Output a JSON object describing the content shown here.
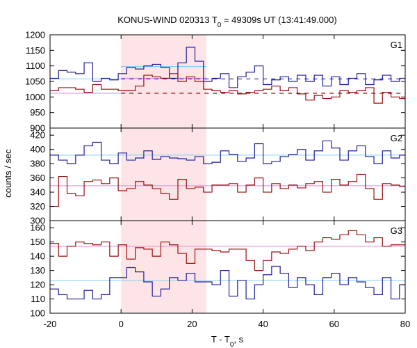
{
  "chart_data": {
    "type": "line",
    "title_main": "KONUS-WIND 020313 T",
    "title_sub": "0",
    "title_rest": " = 49309s UT (13:41:49.000)",
    "xlabel_main": "T - T",
    "xlabel_sub": "0",
    "xlabel_rest": ", s",
    "ylabel": "counts / sec",
    "xlim": [
      -20,
      80
    ],
    "x_ticks": [
      "-20",
      "0",
      "20",
      "40",
      "60",
      "80"
    ],
    "x_tick_values": [
      -20,
      0,
      20,
      40,
      60,
      80
    ],
    "highlight_range": [
      0,
      24
    ],
    "colors": {
      "blue": "#1f1f9e",
      "red": "#9b1010",
      "light_blue": "#7fd0f0",
      "pink": "#e88ad6",
      "highlight": "#fde4e6"
    },
    "bin_edges": [
      -20,
      -17.6,
      -15.2,
      -12.8,
      -10.4,
      -8,
      -5.6,
      -3.2,
      -0.8,
      1.6,
      4,
      6.4,
      8.8,
      11.2,
      13.6,
      16,
      18.4,
      20.8,
      23.2,
      25.6,
      28,
      30.4,
      32.8,
      35.2,
      37.6,
      40,
      42.4,
      44.8,
      47.2,
      49.6,
      52,
      54.4,
      56.8,
      59.2,
      61.6,
      64,
      66.4,
      68.8,
      71.2,
      73.6,
      76,
      78.4,
      80
    ],
    "panels": [
      {
        "label": "G1",
        "ylim": [
          900,
          1200
        ],
        "y_ticks": [
          "900",
          "950",
          "1000",
          "1050",
          "1100",
          "1150",
          "1200"
        ],
        "y_tick_values": [
          900,
          950,
          1000,
          1050,
          1100,
          1150,
          1200
        ],
        "series": [
          {
            "color": "blue",
            "values": [
              1060,
              1085,
              1080,
              1075,
              1110,
              1050,
              1060,
              1055,
              1075,
              1095,
              1090,
              1100,
              1105,
              1095,
              1060,
              1110,
              1160,
              1115,
              1050,
              1060,
              1075,
              1030,
              1065,
              1080,
              1100,
              1040,
              1055,
              1065,
              1050,
              1070,
              1050,
              1070,
              1035,
              1065,
              1040,
              1060,
              1075,
              1040,
              1055,
              1070,
              1050,
              1060
            ]
          },
          {
            "color": "red",
            "values": [
              1020,
              1030,
              1030,
              1025,
              1015,
              1040,
              1025,
              1025,
              1020,
              1020,
              1035,
              1070,
              1065,
              1060,
              1075,
              1050,
              1065,
              1050,
              1025,
              1020,
              1015,
              1020,
              1010,
              1015,
              1020,
              1025,
              1035,
              1020,
              1030,
              1010,
              990,
              1005,
              995,
              1000,
              1020,
              1015,
              1020,
              1030,
              980,
              1015,
              1000,
              995
            ]
          }
        ],
        "pre_levels": [
          {
            "color": "light_blue",
            "value": 1058,
            "x": [
              -20,
              0
            ]
          },
          {
            "color": "pink",
            "value": 1012,
            "x": [
              -20,
              0
            ]
          }
        ],
        "burst_levels": [
          {
            "color": "light_blue",
            "value": 1098,
            "x": [
              0,
              24
            ]
          },
          {
            "color": "pink",
            "value": 1060,
            "x": [
              0,
              24
            ]
          }
        ],
        "post_dashed": [
          {
            "color": "blue",
            "value": 1058,
            "x": [
              0,
              80
            ]
          },
          {
            "color": "red",
            "value": 1012,
            "x": [
              0,
              80
            ]
          }
        ],
        "bg_levels": []
      },
      {
        "label": "G2",
        "ylim": [
          300,
          430
        ],
        "y_ticks": [
          "300",
          "320",
          "340",
          "360",
          "380",
          "400",
          "420"
        ],
        "y_tick_values": [
          300,
          320,
          340,
          360,
          380,
          400,
          420
        ],
        "series": [
          {
            "color": "blue",
            "values": [
              392,
              385,
              380,
              392,
              405,
              410,
              385,
              380,
              395,
              385,
              388,
              398,
              386,
              390,
              388,
              387,
              385,
              390,
              380,
              382,
              398,
              393,
              383,
              388,
              408,
              380,
              383,
              390,
              393,
              400,
              385,
              398,
              412,
              402,
              385,
              398,
              405,
              390,
              380,
              398,
              388,
              392
            ]
          },
          {
            "color": "red",
            "values": [
              320,
              362,
              338,
              335,
              355,
              357,
              352,
              360,
              342,
              345,
              355,
              350,
              345,
              338,
              330,
              358,
              345,
              347,
              340,
              350,
              350,
              352,
              340,
              350,
              360,
              340,
              352,
              345,
              350,
              346,
              352,
              355,
              340,
              358,
              350,
              355,
              365,
              345,
              330,
              352,
              350,
              348
            ]
          }
        ],
        "pre_levels": [],
        "burst_levels": [],
        "post_dashed": [],
        "bg_levels": [
          {
            "color": "light_blue",
            "value": 392
          },
          {
            "color": "pink",
            "value": 349
          }
        ]
      },
      {
        "label": "G3",
        "ylim": [
          100,
          165
        ],
        "y_ticks": [
          "100",
          "110",
          "120",
          "130",
          "140",
          "150",
          "160"
        ],
        "y_tick_values": [
          100,
          110,
          120,
          130,
          140,
          150,
          160
        ],
        "series": [
          {
            "color": "blue",
            "values": [
              117,
              113,
              110,
              110,
              116,
              110,
              113,
              125,
              125,
              132,
              129,
              122,
              112,
              117,
              125,
              123,
              128,
              122,
              122,
              120,
              130,
              112,
              123,
              110,
              120,
              127,
              133,
              128,
              118,
              125,
              120,
              113,
              125,
              128,
              120,
              125,
              122,
              118,
              113,
              125,
              110,
              120
            ]
          },
          {
            "color": "red",
            "values": [
              149,
              140,
              147,
              150,
              149,
              148,
              150,
              140,
              148,
              138,
              146,
              145,
              140,
              150,
              148,
              142,
              135,
              145,
              145,
              144,
              143,
              145,
              145,
              137,
              130,
              137,
              143,
              142,
              145,
              147,
              144,
              150,
              153,
              152,
              155,
              158,
              155,
              150,
              153,
              147,
              148,
              148
            ]
          }
        ],
        "pre_levels": [],
        "burst_levels": [],
        "post_dashed": [],
        "bg_levels": [
          {
            "color": "light_blue",
            "value": 123
          },
          {
            "color": "pink",
            "value": 147
          }
        ]
      }
    ]
  }
}
